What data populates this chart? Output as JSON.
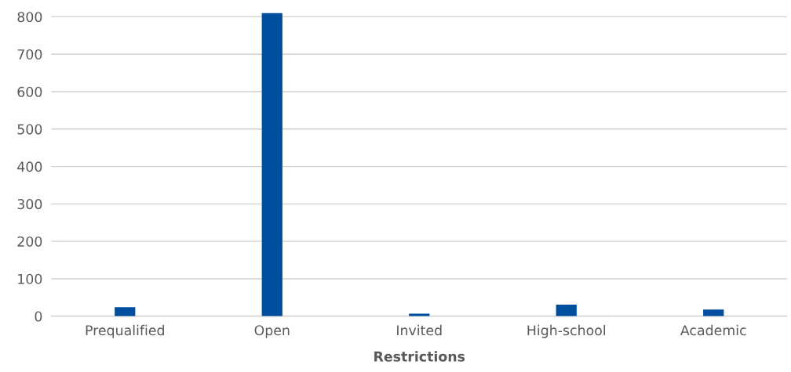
{
  "chart_data": {
    "type": "bar",
    "xlabel": "Restrictions",
    "categories": [
      "Prequalified",
      "Open",
      "Invited",
      "High-school",
      "Academic"
    ],
    "values": [
      24,
      810,
      7,
      31,
      18
    ],
    "color": "#004f9f",
    "ylim": [
      0,
      815
    ],
    "yticks": [
      0,
      100,
      200,
      300,
      400,
      500,
      600,
      700,
      800
    ],
    "grid": "y"
  }
}
